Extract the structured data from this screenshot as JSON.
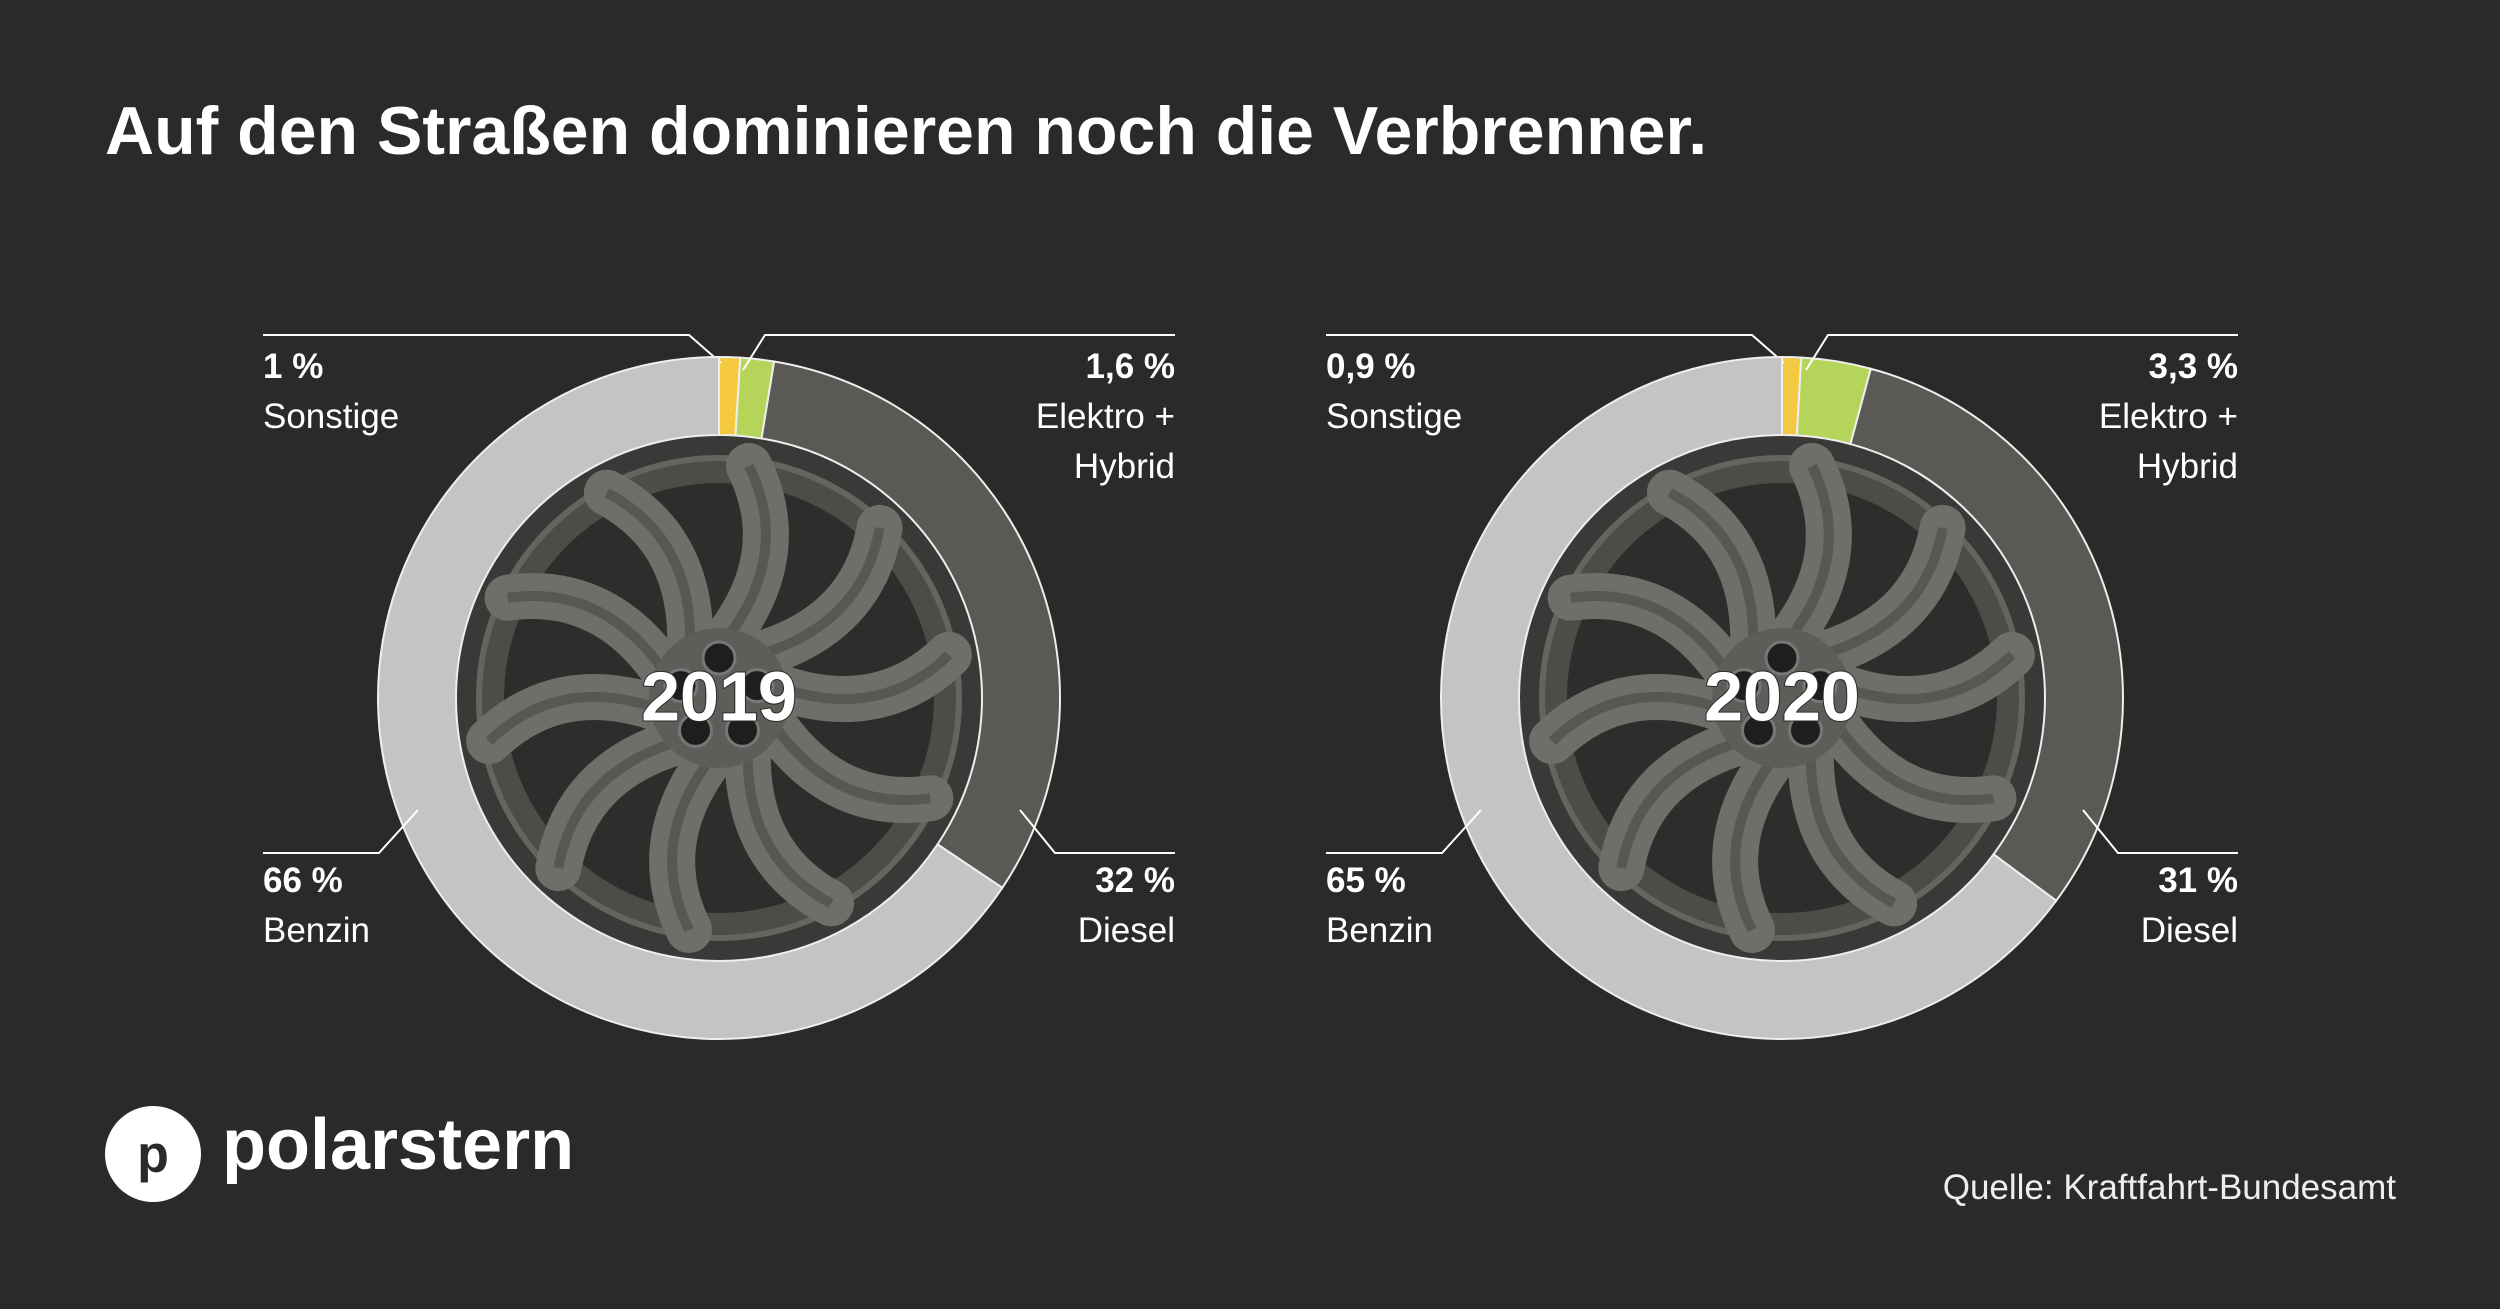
{
  "title": "Auf den Straßen dominieren noch die Verbrenner.",
  "brand": "polarstern",
  "brand_mark": "p",
  "source": "Quelle: Kraftfahrt-Bundesamt",
  "chart_data": [
    {
      "type": "pie",
      "title": "2019",
      "categories": [
        "Sonstige",
        "Elektro + Hybrid",
        "Diesel",
        "Benzin"
      ],
      "values": [
        1,
        1.6,
        32,
        66
      ],
      "value_labels": [
        "1 %",
        "1,6 %",
        "32 %",
        "66 %"
      ],
      "colors": [
        "#f5c842",
        "#b5d55a",
        "#5b5955",
        "#c4c4c4"
      ]
    },
    {
      "type": "pie",
      "title": "2020",
      "categories": [
        "Sonstige",
        "Elektro + Hybrid",
        "Diesel",
        "Benzin"
      ],
      "values": [
        0.9,
        3.3,
        31,
        65
      ],
      "value_labels": [
        "0,9 %",
        "3,3 %",
        "31 %",
        "65 %"
      ],
      "colors": [
        "#f5c842",
        "#b5d55a",
        "#5b5955",
        "#c4c4c4"
      ]
    }
  ]
}
